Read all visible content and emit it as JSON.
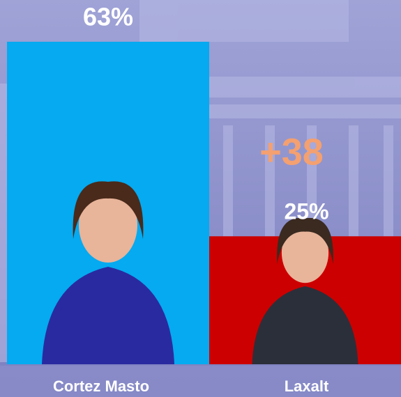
{
  "chart_data": {
    "type": "bar",
    "categories": [
      "Cortez Masto",
      "Laxalt"
    ],
    "values": [
      63,
      25
    ],
    "value_labels": [
      "63%",
      "25%"
    ],
    "colors": [
      "#05aaf0",
      "#cc0000"
    ],
    "annotation": "+38"
  }
}
